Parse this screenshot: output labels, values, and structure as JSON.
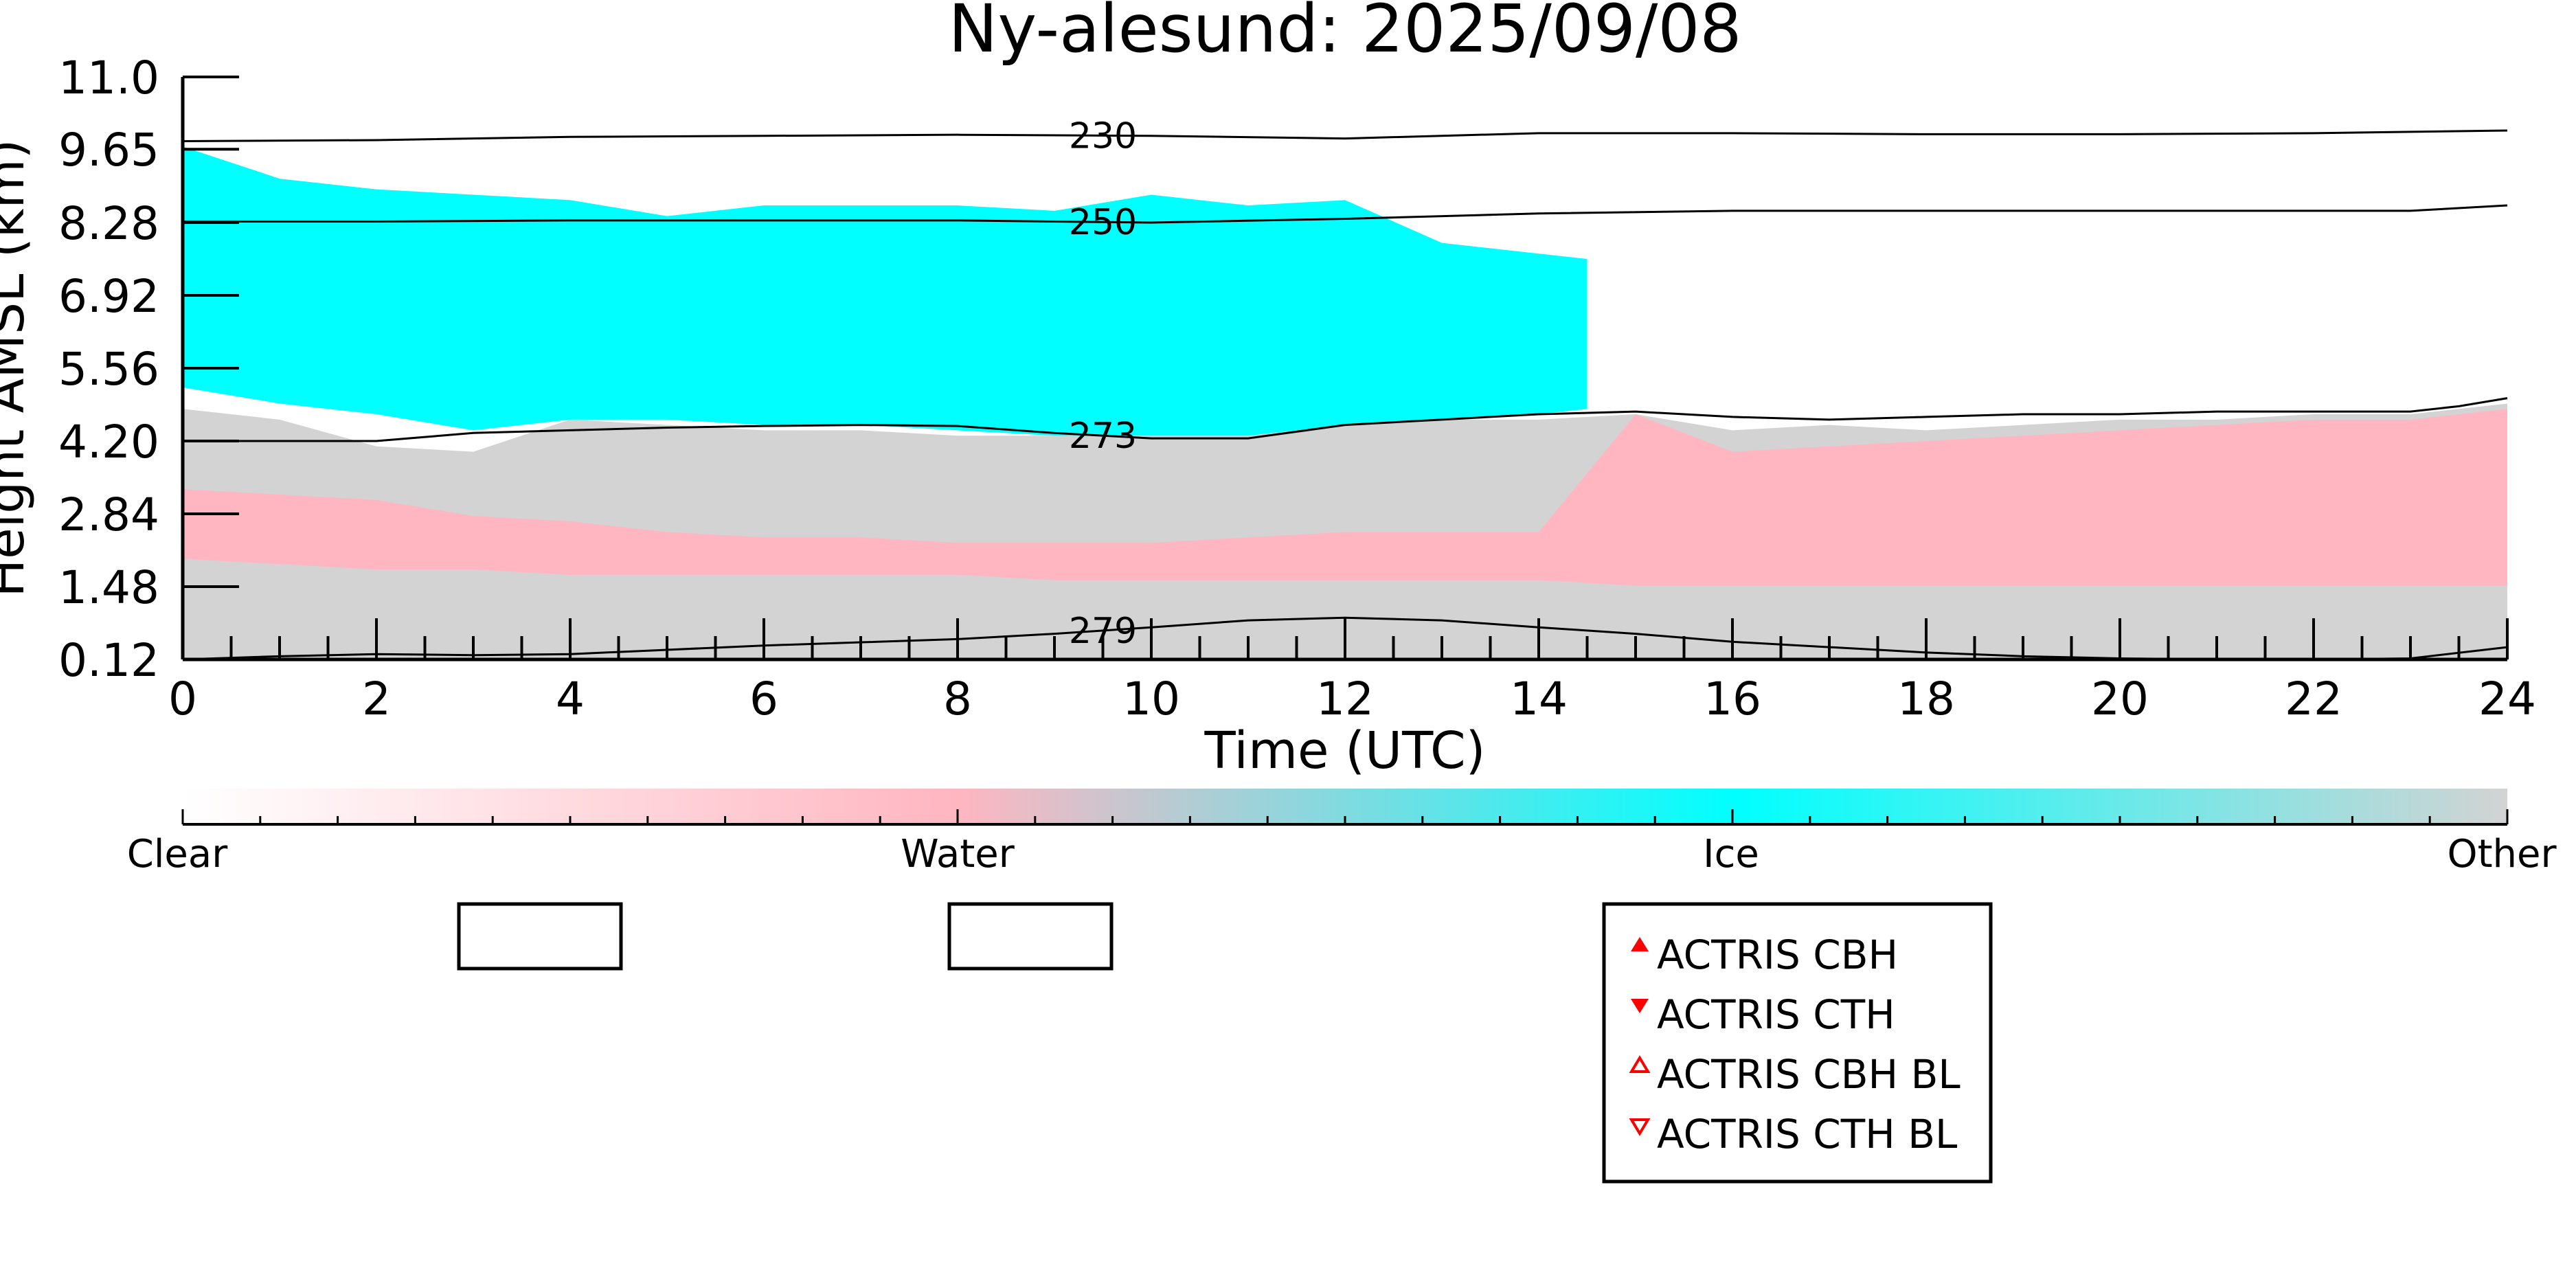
{
  "chart_data": {
    "type": "heatmap",
    "title": "Ny-alesund: 2025/09/08",
    "xlabel": "Time (UTC)",
    "ylabel": "Height AMSL (km)",
    "xlim": [
      0,
      24
    ],
    "ylim": [
      0.12,
      11.0
    ],
    "x_ticks": [
      "0",
      "2",
      "4",
      "6",
      "8",
      "10",
      "12",
      "14",
      "16",
      "18",
      "20",
      "22",
      "24"
    ],
    "y_ticks": [
      "0.12",
      "1.48",
      "2.84",
      "4.20",
      "5.56",
      "6.92",
      "8.28",
      "9.65",
      "11.0"
    ],
    "grid": false,
    "colorbar": {
      "labels": [
        "Clear",
        "Water",
        "Ice",
        "Other"
      ],
      "colors": [
        "#ffffff",
        "#ffb6c1",
        "#00ffff",
        "#d3d3d3"
      ]
    },
    "classes": {
      "clear": "#ffffff",
      "water": "#ffb6c1",
      "ice": "#00ffff",
      "other": "#d3d3d3"
    },
    "layers": {
      "x": [
        0,
        1,
        2,
        3,
        4,
        5,
        6,
        7,
        8,
        9,
        10,
        11,
        12,
        13,
        14,
        15,
        16,
        17,
        18,
        19,
        20,
        21,
        22,
        23,
        24
      ],
      "other_top": [
        4.8,
        4.6,
        4.1,
        4.0,
        4.6,
        4.5,
        4.4,
        4.4,
        4.3,
        4.3,
        4.3,
        4.3,
        4.5,
        4.6,
        4.6,
        4.7,
        4.4,
        4.5,
        4.4,
        4.5,
        4.6,
        4.6,
        4.7,
        4.7,
        4.9
      ],
      "water_top": [
        3.3,
        3.2,
        3.1,
        2.8,
        2.7,
        2.5,
        2.4,
        2.4,
        2.3,
        2.3,
        2.3,
        2.4,
        2.5,
        2.5,
        2.5,
        4.7,
        4.0,
        4.1,
        4.2,
        4.3,
        4.4,
        4.5,
        4.6,
        4.6,
        4.8
      ],
      "water_bottom": [
        2.0,
        1.9,
        1.8,
        1.8,
        1.7,
        1.7,
        1.7,
        1.7,
        1.7,
        1.6,
        1.6,
        1.6,
        1.6,
        1.6,
        1.6,
        1.5,
        1.5,
        1.5,
        1.5,
        1.5,
        1.5,
        1.5,
        1.5,
        1.5,
        1.5
      ],
      "ice_x": [
        0,
        1,
        2,
        3,
        4,
        5,
        6,
        7,
        8,
        9,
        10,
        11,
        12,
        13,
        14,
        14.5
      ],
      "ice_top": [
        9.7,
        9.1,
        8.9,
        8.8,
        8.7,
        8.4,
        8.6,
        8.6,
        8.6,
        8.5,
        8.8,
        8.6,
        8.7,
        7.9,
        7.7,
        7.6
      ],
      "ice_bottom": [
        5.2,
        4.9,
        4.7,
        4.4,
        4.6,
        4.6,
        4.5,
        4.5,
        4.4,
        4.3,
        4.3,
        4.3,
        4.5,
        4.6,
        4.7,
        4.8
      ]
    },
    "contours": [
      {
        "label": "230",
        "label_x": 9.5,
        "x": [
          0,
          2,
          4,
          6,
          8,
          10,
          12,
          14,
          16,
          18,
          20,
          22,
          24
        ],
        "y": [
          9.8,
          9.82,
          9.88,
          9.9,
          9.92,
          9.9,
          9.85,
          9.95,
          9.95,
          9.93,
          9.93,
          9.95,
          10.0
        ]
      },
      {
        "label": "250",
        "label_x": 9.5,
        "x": [
          0,
          2,
          4,
          6,
          8,
          10,
          12,
          14,
          16,
          18,
          20,
          22,
          23,
          24
        ],
        "y": [
          8.3,
          8.3,
          8.32,
          8.32,
          8.32,
          8.28,
          8.35,
          8.45,
          8.5,
          8.5,
          8.5,
          8.5,
          8.5,
          8.6
        ]
      },
      {
        "label": "273",
        "label_x": 9.5,
        "x": [
          0,
          1,
          2,
          3,
          4,
          5,
          6,
          7,
          8,
          9,
          10,
          11,
          12,
          13,
          14,
          15,
          16,
          17,
          18,
          19,
          20,
          21,
          22,
          23,
          23.5,
          24
        ],
        "y": [
          4.2,
          4.2,
          4.2,
          4.35,
          4.4,
          4.45,
          4.48,
          4.5,
          4.48,
          4.35,
          4.25,
          4.25,
          4.5,
          4.6,
          4.7,
          4.75,
          4.65,
          4.6,
          4.65,
          4.7,
          4.7,
          4.75,
          4.75,
          4.75,
          4.85,
          5.0
        ]
      },
      {
        "label": "279",
        "label_x": 9.5,
        "x": [
          0,
          1,
          2,
          3,
          4,
          5,
          6,
          7,
          8,
          9,
          10,
          11,
          12,
          13,
          14,
          15,
          16,
          17,
          18,
          19,
          20,
          21,
          22,
          23,
          24
        ],
        "y": [
          0.12,
          0.18,
          0.22,
          0.2,
          0.22,
          0.3,
          0.38,
          0.44,
          0.5,
          0.6,
          0.72,
          0.85,
          0.9,
          0.85,
          0.72,
          0.6,
          0.45,
          0.35,
          0.25,
          0.18,
          0.14,
          0.12,
          0.12,
          0.14,
          0.35
        ]
      }
    ],
    "legend": {
      "placement": "bottom-right",
      "entries": [
        {
          "label": "ACTRIS CBH",
          "marker": "triangle-up-filled",
          "color": "#ff0000"
        },
        {
          "label": "ACTRIS CTH",
          "marker": "triangle-down-filled",
          "color": "#ff0000"
        },
        {
          "label": "ACTRIS CBH BL",
          "marker": "triangle-up-open",
          "color": "#ff0000"
        },
        {
          "label": "ACTRIS CTH BL",
          "marker": "triangle-down-open",
          "color": "#ff0000"
        }
      ]
    }
  }
}
